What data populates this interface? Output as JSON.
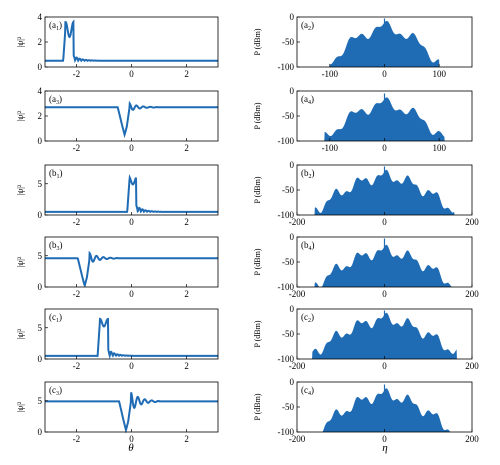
{
  "colors": {
    "curve": "#1f6cb5",
    "fill": "#1f6cb5",
    "axis": "#000000"
  },
  "xlabels": {
    "left": "θ",
    "right": "η"
  },
  "chart_data": [
    {
      "type": "line",
      "panel": "a1",
      "label": "(a",
      "sub": "1",
      "ylabel": "|ψ|²",
      "xlim": [
        -3.14,
        3.14
      ],
      "ylim": [
        0,
        4
      ],
      "yticks": [
        0,
        2,
        4
      ],
      "xticks": [
        -2,
        0,
        2
      ],
      "xticklabels": true,
      "baseline": 0.5,
      "feature": {
        "kind": "bright",
        "center": -2.25,
        "width": 0.3,
        "peak": 3.0,
        "ripple": 0.4
      }
    },
    {
      "type": "line",
      "panel": "a3",
      "label": "(a",
      "sub": "3",
      "ylabel": "|ψ|²",
      "xlim": [
        -3.14,
        3.14
      ],
      "ylim": [
        0,
        4
      ],
      "yticks": [
        0,
        2,
        4
      ],
      "xticks": [
        -2,
        0,
        2
      ],
      "xticklabels": true,
      "baseline": 2.7,
      "feature": {
        "kind": "dark",
        "center": -0.25,
        "min": 0.5,
        "ripple": 0.3
      }
    },
    {
      "type": "line",
      "panel": "b1",
      "label": "(b",
      "sub": "1",
      "ylabel": "|ψ|²",
      "xlim": [
        -3.14,
        3.14
      ],
      "ylim": [
        0,
        8
      ],
      "yticks": [
        0,
        5
      ],
      "xticks": [
        -2,
        0,
        2
      ],
      "xticklabels": true,
      "baseline": 0.5,
      "feature": {
        "kind": "bright",
        "center": 0.05,
        "width": 0.25,
        "peak": 5.5,
        "ripple": 1.0
      }
    },
    {
      "type": "line",
      "panel": "b3",
      "label": "(b",
      "sub": "3",
      "ylabel": "|ψ|²",
      "xlim": [
        -3.14,
        3.14
      ],
      "ylim": [
        0,
        8
      ],
      "yticks": [
        0,
        5
      ],
      "xticks": [
        -2,
        0,
        2
      ],
      "xticklabels": true,
      "baseline": 4.6,
      "feature": {
        "kind": "dark",
        "center": -1.7,
        "min": 0.2,
        "ripple": 0.8
      }
    },
    {
      "type": "line",
      "panel": "c1",
      "label": "(c",
      "sub": "1",
      "ylabel": "|ψ|²",
      "xlim": [
        -3.14,
        3.14
      ],
      "ylim": [
        0,
        8
      ],
      "yticks": [
        0,
        5
      ],
      "xticks": [
        -2,
        0,
        2
      ],
      "xticklabels": true,
      "baseline": 0.5,
      "feature": {
        "kind": "bright",
        "center": -1.0,
        "width": 0.3,
        "peak": 5.8,
        "ripple": 1.0
      }
    },
    {
      "type": "line",
      "panel": "c3",
      "label": "(c",
      "sub": "3",
      "ylabel": "|ψ|²",
      "xlim": [
        -3.14,
        3.14
      ],
      "ylim": [
        0,
        8
      ],
      "yticks": [
        0,
        5
      ],
      "xticks": [
        -2,
        0,
        2
      ],
      "xticklabels": true,
      "baseline": 4.9,
      "feature": {
        "kind": "dark",
        "center": -0.2,
        "min": 0.3,
        "ripple": 1.5
      }
    },
    {
      "type": "area",
      "panel": "a2",
      "label": "(a",
      "sub": "2",
      "ylabel": "P (dBm)",
      "xlim": [
        -160,
        160
      ],
      "ylim": [
        -100,
        0
      ],
      "yticks": [
        0,
        -50,
        -100
      ],
      "xticks": [
        -100,
        0,
        100
      ],
      "xticklabels": true,
      "spread": 100,
      "top": -20,
      "spike": -3
    },
    {
      "type": "area",
      "panel": "a4",
      "label": "(a",
      "sub": "4",
      "ylabel": "P (dBm)",
      "xlim": [
        -160,
        160
      ],
      "ylim": [
        -100,
        0
      ],
      "yticks": [
        0,
        -50,
        -100
      ],
      "xticks": [
        -100,
        0,
        100
      ],
      "xticklabels": true,
      "spread": 110,
      "top": -25,
      "spike": -5
    },
    {
      "type": "area",
      "panel": "b2",
      "label": "(b",
      "sub": "2",
      "ylabel": "P (dBm)",
      "xlim": [
        -200,
        200
      ],
      "ylim": [
        -100,
        0
      ],
      "yticks": [
        0,
        -50,
        -100
      ],
      "xticks": [
        -200,
        0,
        200
      ],
      "xticklabels": true,
      "spread": 160,
      "top": -22,
      "spike": -3
    },
    {
      "type": "area",
      "panel": "b4",
      "label": "(b",
      "sub": "4",
      "ylabel": "P (dBm)",
      "xlim": [
        -200,
        200
      ],
      "ylim": [
        -100,
        0
      ],
      "yticks": [
        0,
        -50,
        -100
      ],
      "xticks": [
        -200,
        0,
        200
      ],
      "xticklabels": true,
      "spread": 160,
      "top": -28,
      "spike": -3
    },
    {
      "type": "area",
      "panel": "c2",
      "label": "(c",
      "sub": "2",
      "ylabel": "P (dBm)",
      "xlim": [
        -200,
        200
      ],
      "ylim": [
        -100,
        0
      ],
      "yticks": [
        0,
        -50,
        -100
      ],
      "xticks": [
        -200,
        0,
        200
      ],
      "xticklabels": true,
      "spread": 165,
      "top": -20,
      "spike": -3
    },
    {
      "type": "area",
      "panel": "c4",
      "label": "(c",
      "sub": "4",
      "ylabel": "P (dBm)",
      "xlim": [
        -200,
        200
      ],
      "ylim": [
        -100,
        0
      ],
      "yticks": [
        0,
        -50,
        -100
      ],
      "xticks": [
        -200,
        0,
        200
      ],
      "xticklabels": true,
      "spread": 150,
      "top": -25,
      "spike": -5
    }
  ]
}
